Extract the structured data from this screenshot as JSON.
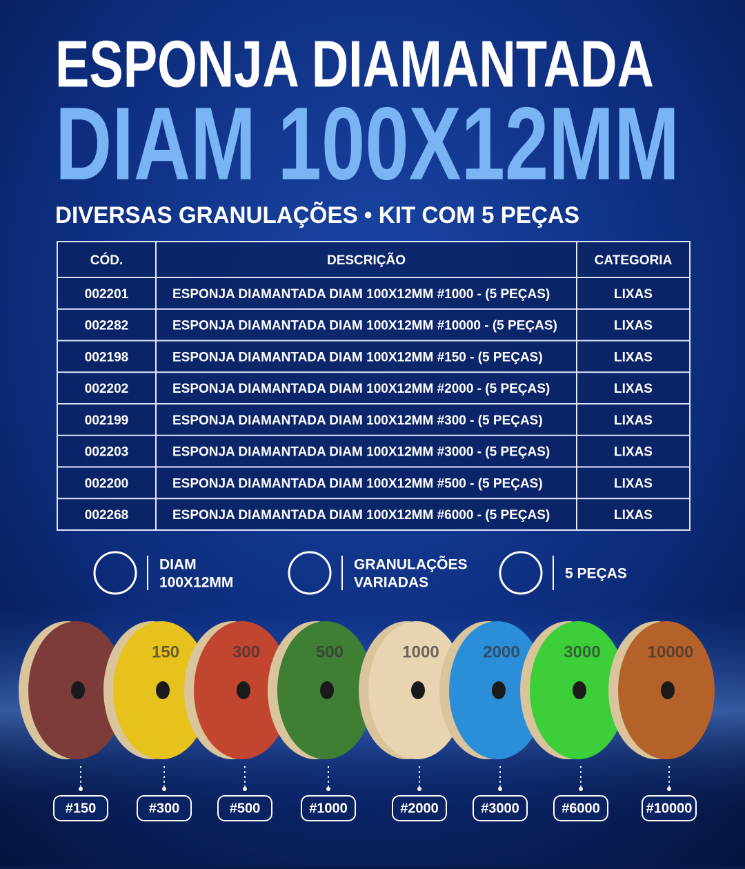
{
  "header": {
    "title": "ESPONJA DIAMANTADA",
    "title_highlight": "DIAM 100X12MM",
    "subtitle": "DIVERSAS GRANULAÇÕES • KIT COM 5 PEÇAS"
  },
  "table": {
    "columns": [
      "CÓD.",
      "DESCRIÇÃO",
      "CATEGORIA"
    ],
    "rows": [
      [
        "002201",
        "ESPONJA DIAMANTADA DIAM 100X12MM #1000 - (5 PEÇAS)",
        "LIXAS"
      ],
      [
        "002282",
        "ESPONJA DIAMANTADA DIAM 100X12MM #10000 - (5 PEÇAS)",
        "LIXAS"
      ],
      [
        "002198",
        "ESPONJA DIAMANTADA DIAM 100X12MM #150 - (5 PEÇAS)",
        "LIXAS"
      ],
      [
        "002202",
        "ESPONJA DIAMANTADA DIAM 100X12MM #2000 - (5 PEÇAS)",
        "LIXAS"
      ],
      [
        "002199",
        "ESPONJA DIAMANTADA DIAM 100X12MM #300 - (5 PEÇAS)",
        "LIXAS"
      ],
      [
        "002203",
        "ESPONJA DIAMANTADA DIAM 100X12MM #3000 - (5 PEÇAS)",
        "LIXAS"
      ],
      [
        "002200",
        "ESPONJA DIAMANTADA DIAM 100X12MM #500 - (5 PEÇAS)",
        "LIXAS"
      ],
      [
        "002268",
        "ESPONJA DIAMANTADA DIAM 100X12MM #6000 - (5 PEÇAS)",
        "LIXAS"
      ]
    ]
  },
  "features": [
    [
      "DIAM",
      "100X12MM"
    ],
    [
      "GRANULAÇÕES",
      "VARIADAS"
    ],
    [
      "5 PEÇAS"
    ]
  ],
  "disc_labels": [
    "150",
    "300",
    "500",
    "1000",
    "2000",
    "3000",
    "10000"
  ],
  "tags": [
    "#150",
    "#300",
    "#500",
    "#1000",
    "#2000",
    "#3000",
    "#6000",
    "#10000"
  ]
}
